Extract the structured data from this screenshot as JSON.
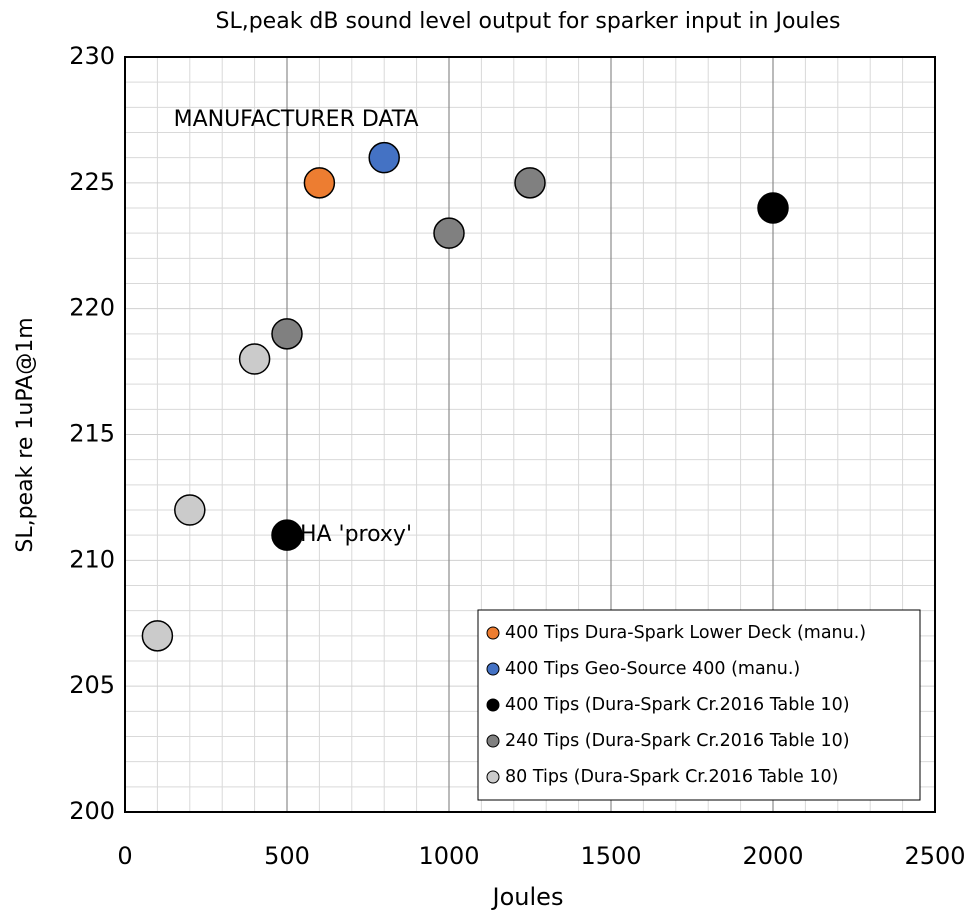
{
  "chart_data": {
    "type": "scatter",
    "title": "SL,peak dB sound level output for sparker input in Joules",
    "x_label": "Joules",
    "y_label": "SL,peak re 1uPA@1m",
    "xlim": [
      0,
      2500
    ],
    "ylim": [
      200,
      230
    ],
    "xticks": [
      0,
      500,
      1000,
      1500,
      2000,
      2500
    ],
    "yticks": [
      200,
      205,
      210,
      215,
      220,
      225,
      230
    ],
    "grid": true,
    "minor_grid": true,
    "legend": "lower right",
    "annotations": [
      {
        "text": "MANUFACTURER DATA",
        "x": 150,
        "y": 227.5
      },
      {
        "text": "IHA 'proxy'",
        "x": 520,
        "y": 211
      }
    ],
    "series": [
      {
        "name": "400 Tips Dura-Spark Lower Deck (manu.)",
        "color": "#ed7d31",
        "x": [
          600
        ],
        "values": [
          225
        ]
      },
      {
        "name": "400 Tips Geo-Source 400 (manu.)",
        "color": "#4472c4",
        "x": [
          800
        ],
        "values": [
          226
        ]
      },
      {
        "name": "400 Tips (Dura-Spark Cr.2016 Table 10)",
        "color": "#000000",
        "x": [
          2000,
          500
        ],
        "values": [
          224,
          211
        ]
      },
      {
        "name": "240 Tips (Dura-Spark Cr.2016 Table 10)",
        "color": "#808080",
        "x": [
          500,
          1000,
          1250
        ],
        "values": [
          219,
          223,
          225
        ]
      },
      {
        "name": "80 Tips (Dura-Spark Cr.2016 Table 10)",
        "color": "#cbcbcb",
        "x": [
          100,
          200,
          400
        ],
        "values": [
          207,
          212,
          218
        ]
      }
    ]
  }
}
